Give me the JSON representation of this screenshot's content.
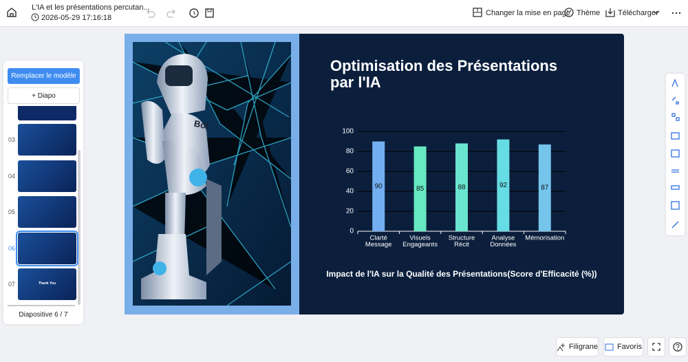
{
  "header": {
    "title": "L'IA et les présentations percutan...",
    "date": "2026-05-29 17:16:18",
    "layout": "Changer la mise en page",
    "theme": "Thème",
    "download": "Télécharger"
  },
  "sidebar": {
    "replace": "Remplacer le modèle",
    "add": "+ Diapo",
    "slides": [
      "03",
      "04",
      "05",
      "06",
      "07"
    ],
    "thumb_text": "Thank You",
    "counter": "Diapositive 6 / 7"
  },
  "slide": {
    "title": [
      "Optimisation des Présentations",
      "par l'IA"
    ],
    "chart": {
      "type": "bar",
      "categories": [
        [
          "Clarté",
          "Message"
        ],
        [
          "Visuels",
          "Engageants"
        ],
        [
          "Structure",
          "Récit"
        ],
        [
          "Analyse",
          "Données"
        ],
        [
          "Mémorisation"
        ]
      ],
      "values": [
        90,
        85,
        88,
        92,
        87
      ],
      "colors": [
        "#72aef0",
        "#66e8c0",
        "#6ae6cf",
        "#66dce4",
        "#74c4ec"
      ],
      "ylim": [
        0,
        100
      ],
      "yticks": [
        0,
        20,
        40,
        60,
        80,
        100
      ],
      "grid": true,
      "caption": "Impact de l'IA sur la Qualité des Présentations(Score d'Efficacité (%))"
    }
  },
  "footer": {
    "watermark": "Filigrane",
    "favorites": "Favoris"
  }
}
